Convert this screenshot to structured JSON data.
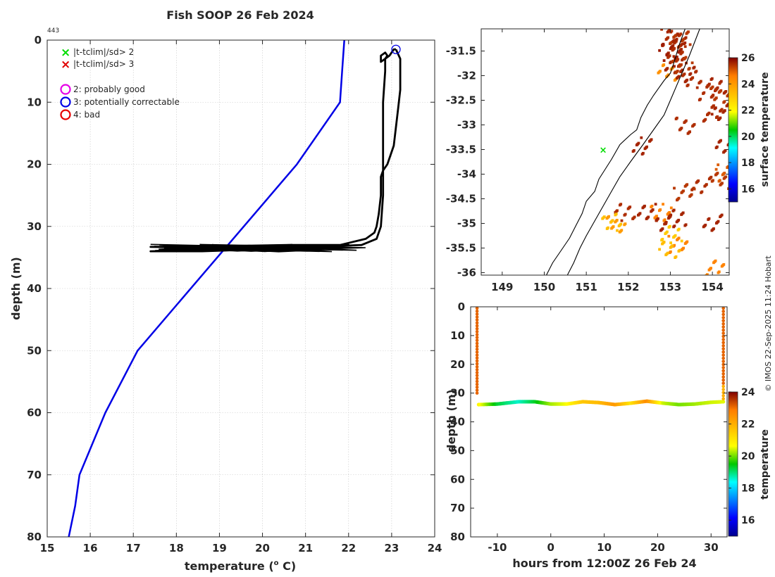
{
  "figure": {
    "title": "Fish SOOP 26 Feb 2024",
    "corner_label": "443",
    "credit": "© IMOS 22-Sep-2025 11:24 Hobart"
  },
  "legend": {
    "markers": [
      {
        "symbol": "×",
        "label": "|t-tclim|/sd> 2",
        "color": "#00dd00"
      },
      {
        "symbol": "×",
        "label": "|t-tclim|/sd> 3",
        "color": "#e00000"
      }
    ],
    "flags": [
      {
        "label": "2: probably good",
        "color": "#e600e6"
      },
      {
        "label": "3: potentially correctable",
        "color": "#0000e6"
      },
      {
        "label": "4: bad",
        "color": "#e60000"
      }
    ]
  },
  "colors": {
    "climatology": "#0000e6",
    "profile": "#000000",
    "grid": "#c8c8c8",
    "axis": "#262626"
  },
  "chart_data": [
    {
      "type": "line",
      "title": "Fish SOOP 26 Feb 2024",
      "xlabel": "temperature (",
      "xlabel_sup": "o",
      "xlabel_end": " C)",
      "ylabel": "depth (m)",
      "xlim": [
        15,
        24
      ],
      "ylim": [
        0,
        80
      ],
      "y_reversed": true,
      "xticks": [
        15,
        16,
        17,
        18,
        19,
        20,
        21,
        22,
        23,
        24
      ],
      "yticks": [
        0,
        10,
        20,
        30,
        40,
        50,
        60,
        70,
        80
      ],
      "grid": true,
      "series": [
        {
          "name": "climatology",
          "color": "#0000e6",
          "x": [
            21.9,
            21.85,
            21.8,
            20.8,
            17.1,
            16.35,
            15.75,
            15.65,
            15.5
          ],
          "y": [
            0,
            5,
            10,
            20,
            50,
            60,
            70,
            75,
            80
          ]
        },
        {
          "name": "profile",
          "color": "#000000",
          "x": [
            23.1,
            23.2,
            23.2,
            23.15,
            23.1,
            23.05,
            22.9,
            22.8,
            22.75,
            22.75,
            22.7,
            22.65,
            22.6,
            22.4,
            21.8,
            21.3,
            20.8,
            20.3,
            20.0,
            19.6,
            19.2,
            18.2,
            17.4,
            18.8,
            20.6,
            22.0,
            21.6,
            20.3,
            18.6,
            17.4,
            18.6,
            20.2,
            21.5,
            22.3,
            22.65,
            22.75,
            22.8,
            22.8,
            22.8,
            22.8,
            22.85,
            22.85,
            22.9,
            22.85,
            22.75,
            22.75,
            22.95,
            23.05,
            23.1
          ],
          "y": [
            1.5,
            3,
            8,
            11,
            14,
            17,
            20,
            21,
            22,
            25,
            28,
            30,
            31,
            32,
            33,
            33.2,
            33.4,
            33.5,
            33.6,
            33.6,
            33.6,
            33.4,
            33.3,
            33.2,
            33,
            33,
            33.2,
            33.6,
            34,
            34,
            33.8,
            33.3,
            33.2,
            33,
            32,
            30,
            25,
            20,
            15,
            10,
            5,
            3,
            2.5,
            2,
            2.5,
            3.5,
            2.5,
            1.5,
            1.5
          ]
        },
        {
          "name": "flagged 3: potentially correctable",
          "color": "#0000e6",
          "marker": "circle",
          "x": [
            23.1
          ],
          "y": [
            1.5
          ]
        }
      ]
    },
    {
      "type": "heatmap",
      "colorbar_label": "surface temperature",
      "xlim": [
        148.5,
        154.4
      ],
      "ylim": [
        -36.05,
        -31.05
      ],
      "xticks": [
        149,
        150,
        151,
        152,
        153,
        154
      ],
      "yticks": [
        -31.5,
        -32,
        -32.5,
        -33,
        -33.5,
        -34,
        -34.5,
        -35,
        -35.5,
        -36
      ],
      "ytick_labels": [
        "-31.5",
        "-32",
        "-32.5",
        "-33",
        "-33.5",
        "-34",
        "-34.5",
        "-35",
        "-35.5",
        "-36"
      ],
      "colorbar_range": [
        15,
        26
      ],
      "colorbar_ticks": [
        16,
        18,
        20,
        22,
        24,
        26
      ],
      "coastline": {
        "lon": [
          153.35,
          153.2,
          153.1,
          153.0,
          152.85,
          152.6,
          152.45,
          152.3,
          152.2,
          152.05,
          151.8,
          151.6,
          151.45,
          151.3,
          151.2,
          151.0,
          150.9,
          150.75,
          150.6,
          150.4,
          150.2,
          150.05
        ],
        "lat": [
          -31.05,
          -31.4,
          -31.7,
          -31.95,
          -32.1,
          -32.4,
          -32.6,
          -32.85,
          -33.1,
          -33.2,
          -33.4,
          -33.7,
          -33.9,
          -34.1,
          -34.35,
          -34.55,
          -34.8,
          -35.05,
          -35.3,
          -35.55,
          -35.8,
          -36.05
        ]
      },
      "isobath": {
        "lon": [
          153.7,
          153.45,
          153.25,
          153.05,
          152.85,
          152.6,
          152.35,
          152.05,
          151.8,
          151.6,
          151.4,
          151.2,
          151.0,
          150.85,
          150.7,
          150.55
        ],
        "lat": [
          -31.05,
          -31.6,
          -32.0,
          -32.4,
          -32.8,
          -33.1,
          -33.4,
          -33.75,
          -34.05,
          -34.35,
          -34.65,
          -34.95,
          -35.25,
          -35.5,
          -35.8,
          -36.05
        ]
      },
      "pixels": [
        {
          "lon": 153.0,
          "lat": -31.2,
          "t": 25.5
        },
        {
          "lon": 153.1,
          "lat": -31.2,
          "t": 25.6
        },
        {
          "lon": 153.2,
          "lat": -31.25,
          "t": 25.4
        },
        {
          "lon": 153.1,
          "lat": -31.4,
          "t": 25.6
        },
        {
          "lon": 152.95,
          "lat": -31.5,
          "t": 25.7
        },
        {
          "lon": 153.15,
          "lat": -31.55,
          "t": 25.5
        },
        {
          "lon": 153.05,
          "lat": -31.75,
          "t": 25.6
        },
        {
          "lon": 153.25,
          "lat": -31.75,
          "t": 25.4
        },
        {
          "lon": 152.9,
          "lat": -31.9,
          "t": 24.2
        },
        {
          "lon": 153.3,
          "lat": -31.95,
          "t": 25.6
        },
        {
          "lon": 153.5,
          "lat": -32.05,
          "t": 25.5
        },
        {
          "lon": 154.05,
          "lat": -32.2,
          "t": 25.6
        },
        {
          "lon": 153.9,
          "lat": -32.3,
          "t": 25.5
        },
        {
          "lon": 154.15,
          "lat": -32.35,
          "t": 25.4
        },
        {
          "lon": 154.2,
          "lat": -32.7,
          "t": 25.6
        },
        {
          "lon": 154.0,
          "lat": -32.75,
          "t": 25.5
        },
        {
          "lon": 153.3,
          "lat": -33.0,
          "t": 25.5
        },
        {
          "lon": 154.3,
          "lat": -33.4,
          "t": 25.6
        },
        {
          "lon": 152.3,
          "lat": -33.4,
          "t": 25.6
        },
        {
          "lon": 154.3,
          "lat": -33.95,
          "t": 25.0
        },
        {
          "lon": 154.2,
          "lat": -34.1,
          "t": 25.4
        },
        {
          "lon": 153.7,
          "lat": -34.2,
          "t": 25.5
        },
        {
          "lon": 153.3,
          "lat": -34.35,
          "t": 25.4
        },
        {
          "lon": 151.9,
          "lat": -34.75,
          "t": 25.5
        },
        {
          "lon": 152.4,
          "lat": -34.75,
          "t": 25.6
        },
        {
          "lon": 152.75,
          "lat": -34.75,
          "t": 24.5
        },
        {
          "lon": 152.85,
          "lat": -34.95,
          "t": 25.6
        },
        {
          "lon": 153.1,
          "lat": -34.85,
          "t": 25.6
        },
        {
          "lon": 151.7,
          "lat": -35.0,
          "t": 24.0
        },
        {
          "lon": 151.55,
          "lat": -34.95,
          "t": 23.2
        },
        {
          "lon": 153.0,
          "lat": -35.2,
          "t": 23.0
        },
        {
          "lon": 153.15,
          "lat": -35.4,
          "t": 24.5
        },
        {
          "lon": 152.95,
          "lat": -35.5,
          "t": 23.3
        },
        {
          "lon": 154.0,
          "lat": -34.95,
          "t": 25.6
        },
        {
          "lon": 154.0,
          "lat": -35.9,
          "t": 24.5
        }
      ],
      "flagged_points": [
        {
          "lon": 151.4,
          "lat": -33.5,
          "marker": "×",
          "color": "#00dd00"
        }
      ]
    },
    {
      "type": "scatter",
      "xlabel": "hours from 12:00Z 26 Feb 24",
      "ylabel": "depth (m)",
      "colorbar_label": "temperature",
      "xlim": [
        -15,
        33
      ],
      "ylim": [
        0,
        80
      ],
      "y_reversed": true,
      "xticks": [
        -10,
        0,
        10,
        20,
        30
      ],
      "yticks": [
        0,
        10,
        20,
        30,
        40,
        50,
        60,
        70,
        80
      ],
      "colorbar_range": [
        15,
        24
      ],
      "colorbar_ticks": [
        16,
        18,
        20,
        22,
        24
      ],
      "descent": {
        "hour": -13.8,
        "depth_from": 0.5,
        "depth_to": 33,
        "temperature": 23.1
      },
      "ascent": {
        "hour": 32.3,
        "depth_from": 33,
        "depth_to": 0.5,
        "temperature": 23.1
      },
      "tow": {
        "hours": [
          -13.5,
          -10,
          -6,
          -3,
          0,
          3,
          6,
          9,
          12,
          15,
          18,
          21,
          24,
          27,
          30,
          32.3
        ],
        "depths": [
          34,
          33.8,
          33,
          33,
          33.8,
          33.8,
          33,
          33.3,
          34,
          33.5,
          32.8,
          33.5,
          34,
          33.8,
          33.2,
          33
        ],
        "temperatures": [
          20.8,
          19.3,
          18.6,
          19.3,
          20.2,
          20.6,
          21.6,
          21.8,
          22.4,
          21.1,
          22.6,
          20.4,
          20.0,
          20.2,
          20.4,
          20.5
        ]
      }
    }
  ]
}
